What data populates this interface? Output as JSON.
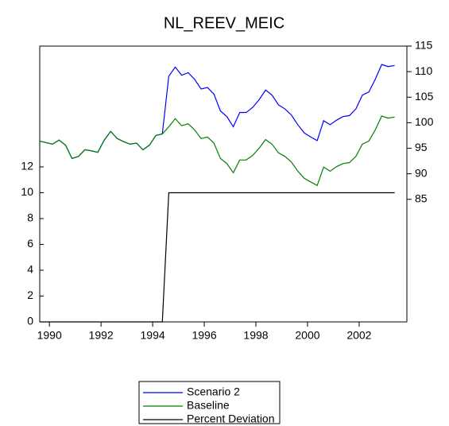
{
  "chart_data": {
    "type": "line",
    "title": "NL_REEV_MEIC",
    "x": [
      1989.625,
      1989.875,
      1990.125,
      1990.375,
      1990.625,
      1990.875,
      1991.125,
      1991.375,
      1991.625,
      1991.875,
      1992.125,
      1992.375,
      1992.625,
      1992.875,
      1993.125,
      1993.375,
      1993.625,
      1993.875,
      1994.125,
      1994.375,
      1994.625,
      1994.875,
      1995.125,
      1995.375,
      1995.625,
      1995.875,
      1996.125,
      1996.375,
      1996.625,
      1996.875,
      1997.125,
      1997.375,
      1997.625,
      1997.875,
      1998.125,
      1998.375,
      1998.625,
      1998.875,
      1999.125,
      1999.375,
      1999.625,
      1999.875,
      2000.125,
      2000.375,
      2000.625,
      2000.875,
      2001.125,
      2001.375,
      2001.625,
      2001.875,
      2002.125,
      2002.375,
      2002.625,
      2002.875,
      2003.125,
      2003.375
    ],
    "series": [
      {
        "name": "Scenario 2",
        "color": "#0000ff",
        "axis": "y2",
        "values": [
          96.4,
          96.1,
          95.8,
          96.6,
          95.6,
          93.0,
          93.4,
          94.7,
          94.5,
          94.2,
          96.6,
          98.3,
          96.9,
          96.3,
          95.8,
          96.0,
          94.7,
          95.6,
          97.5,
          97.8,
          109.1,
          110.9,
          109.3,
          109.8,
          108.5,
          106.6,
          106.9,
          105.6,
          102.3,
          101.2,
          99.2,
          102.0,
          102.0,
          103.0,
          104.5,
          106.4,
          105.4,
          103.5,
          102.7,
          101.5,
          99.6,
          98.0,
          97.2,
          96.5,
          100.4,
          99.6,
          100.5,
          101.2,
          101.4,
          102.7,
          105.4,
          106.0,
          108.5,
          111.4,
          111.0,
          111.2
        ]
      },
      {
        "name": "Baseline",
        "color": "#008000",
        "axis": "y2",
        "values": [
          96.4,
          96.1,
          95.8,
          96.6,
          95.6,
          93.0,
          93.4,
          94.7,
          94.5,
          94.2,
          96.6,
          98.3,
          96.9,
          96.3,
          95.8,
          96.0,
          94.7,
          95.6,
          97.5,
          97.8,
          99.2,
          100.8,
          99.4,
          99.8,
          98.6,
          96.9,
          97.2,
          96.0,
          93.0,
          92.0,
          90.2,
          92.7,
          92.7,
          93.6,
          95.0,
          96.7,
          95.8,
          94.1,
          93.4,
          92.3,
          90.5,
          89.1,
          88.4,
          87.7,
          91.3,
          90.5,
          91.4,
          92.0,
          92.2,
          93.4,
          95.8,
          96.4,
          98.6,
          101.3,
          100.9,
          101.1
        ]
      },
      {
        "name": "Percent Deviation",
        "color": "#000000",
        "values": [
          0,
          0,
          0,
          0,
          0,
          0,
          0,
          0,
          0,
          0,
          0,
          0,
          0,
          0,
          0,
          0,
          0,
          0,
          0,
          0,
          10,
          10,
          10,
          10,
          10,
          10,
          10,
          10,
          10,
          10,
          10,
          10,
          10,
          10,
          10,
          10,
          10,
          10,
          10,
          10,
          10,
          10,
          10,
          10,
          10,
          10,
          10,
          10,
          10,
          10,
          10,
          10,
          10,
          10,
          10,
          10
        ]
      }
    ],
    "xlim": [
      1989.625,
      2003.85
    ],
    "xticks": [
      1990,
      1992,
      1994,
      1996,
      1998,
      2000,
      2002
    ],
    "ylim": [
      0,
      21.35
    ],
    "yticks": [
      0,
      2,
      4,
      6,
      8,
      10,
      12
    ],
    "y2lim": [
      61,
      115
    ],
    "y2ticks": [
      85,
      90,
      95,
      100,
      105,
      110,
      115
    ]
  }
}
